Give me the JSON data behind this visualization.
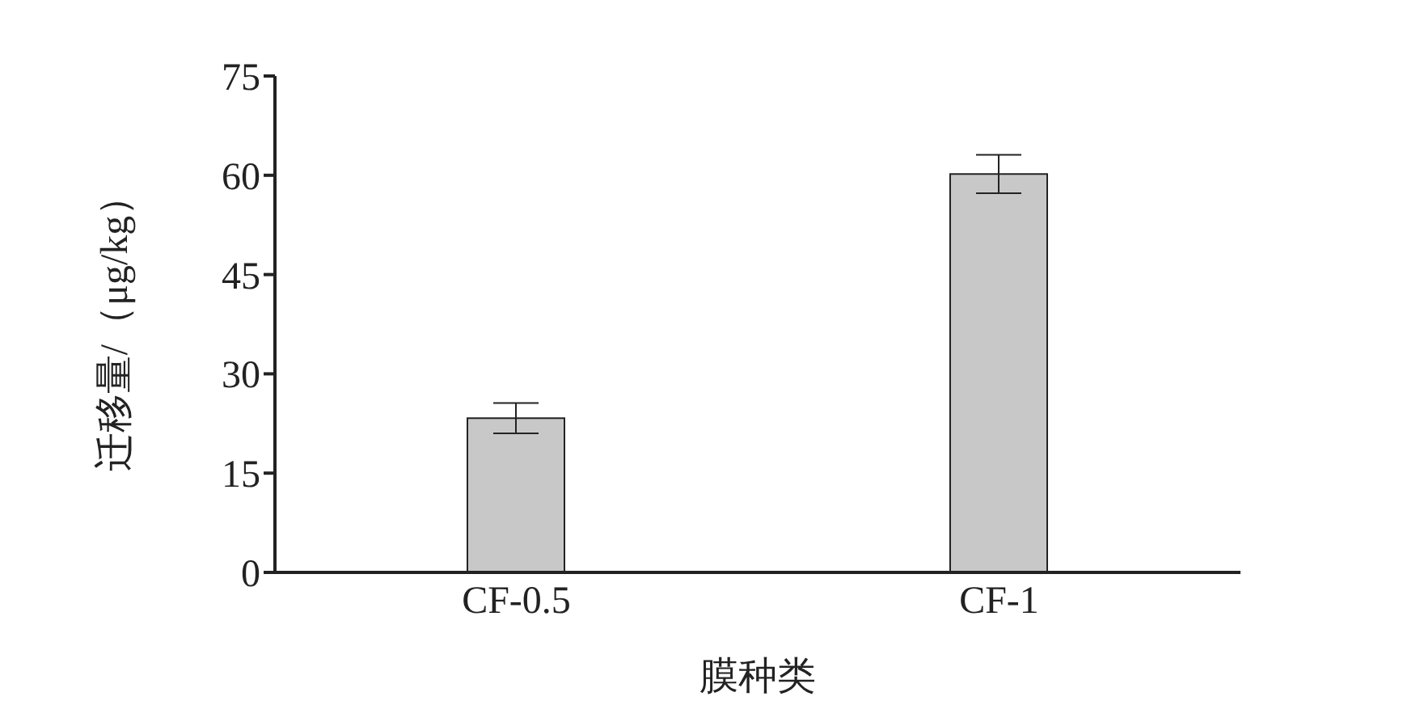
{
  "chart_data": {
    "type": "bar",
    "categories": [
      "CF-0.5",
      "CF-1"
    ],
    "values": [
      23.3,
      60.2
    ],
    "errors": [
      2.3,
      2.9
    ],
    "color": "#c8c8c8",
    "xlabel": "膜种类",
    "ylabel": "迁移量/（μg/kg）",
    "ylim": [
      0,
      75
    ],
    "yticks": [
      0,
      15,
      30,
      45,
      60,
      75
    ],
    "grid": false
  }
}
